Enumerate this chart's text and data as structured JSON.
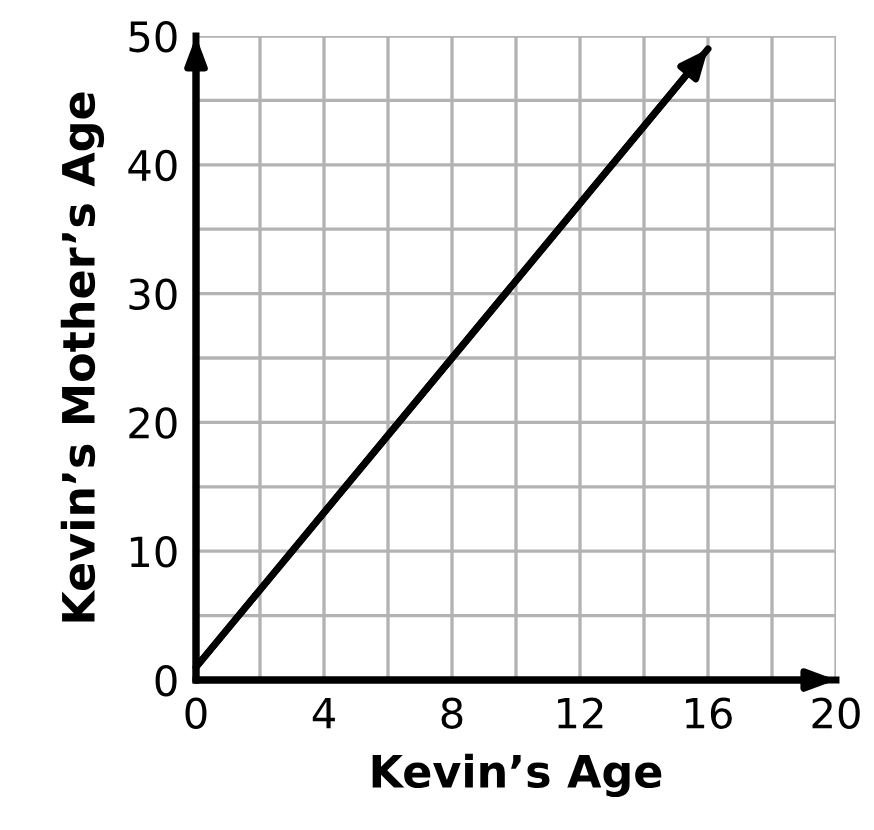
{
  "chart_data": {
    "type": "line",
    "xlabel": "Kevin’s Age",
    "ylabel": "Kevin’s Mother’s Age",
    "x": [
      0,
      16
    ],
    "series": [
      {
        "color": "#000000",
        "values": [
          1,
          49
        ]
      }
    ],
    "xlim": [
      0,
      20
    ],
    "xticks": [
      0,
      {
        "value": 2,
        "label": null
      },
      4,
      {
        "value": 6,
        "label": null
      },
      8,
      {
        "value": 10,
        "label": null
      },
      12,
      {
        "value": 14,
        "label": null
      },
      16,
      {
        "value": 18,
        "label": null
      },
      20
    ],
    "ylim": [
      0,
      50
    ],
    "yticks": [
      0,
      {
        "value": 5,
        "label": null
      },
      10,
      {
        "value": 15,
        "label": null
      },
      20,
      {
        "value": 25,
        "label": null
      },
      30,
      {
        "value": 35,
        "label": null
      },
      40,
      {
        "value": 45,
        "label": null
      },
      50
    ],
    "grid": true,
    "marker": "none",
    "line_style": "solid"
  }
}
